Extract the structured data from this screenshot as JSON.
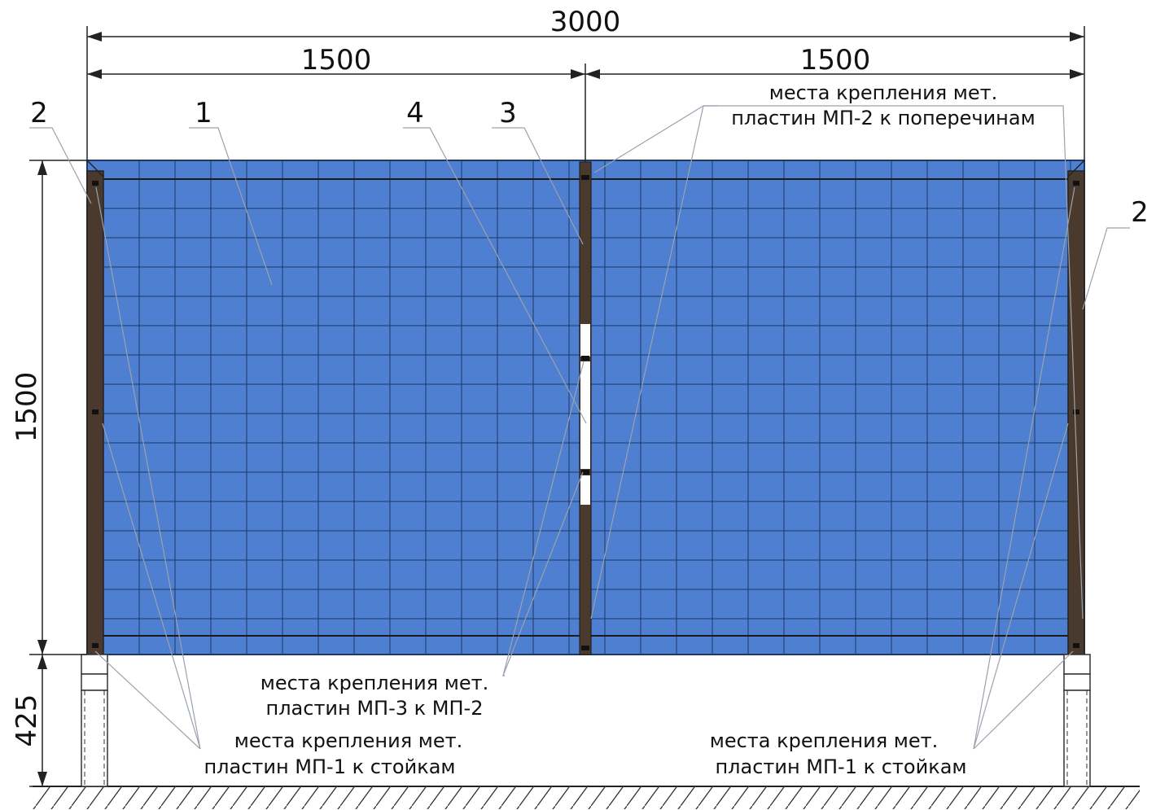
{
  "dimensions": {
    "total_width": "3000",
    "left_width": "1500",
    "right_width": "1500",
    "height": "1500",
    "post_height": "425"
  },
  "callouts": {
    "mesh": "1",
    "post_left": "2",
    "post_right": "2",
    "crossbar": "3",
    "plate": "4"
  },
  "notes": {
    "mp2": {
      "line1": "места крепления мет.",
      "line2": "пластин МП-2 к поперечинам"
    },
    "mp3": {
      "line1": "места крепления мет.",
      "line2": "пластин МП-3 к МП-2"
    },
    "mp1_left": {
      "line1": "места крепления мет.",
      "line2": "пластин МП-1 к стойкам"
    },
    "mp1_right": {
      "line1": "места крепления мет.",
      "line2": "пластин МП-1 к стойкам"
    }
  },
  "colors": {
    "mesh": "#4f7fd0",
    "grid": "#1d3766",
    "post": "#4a3a2e",
    "line": "#222222"
  }
}
